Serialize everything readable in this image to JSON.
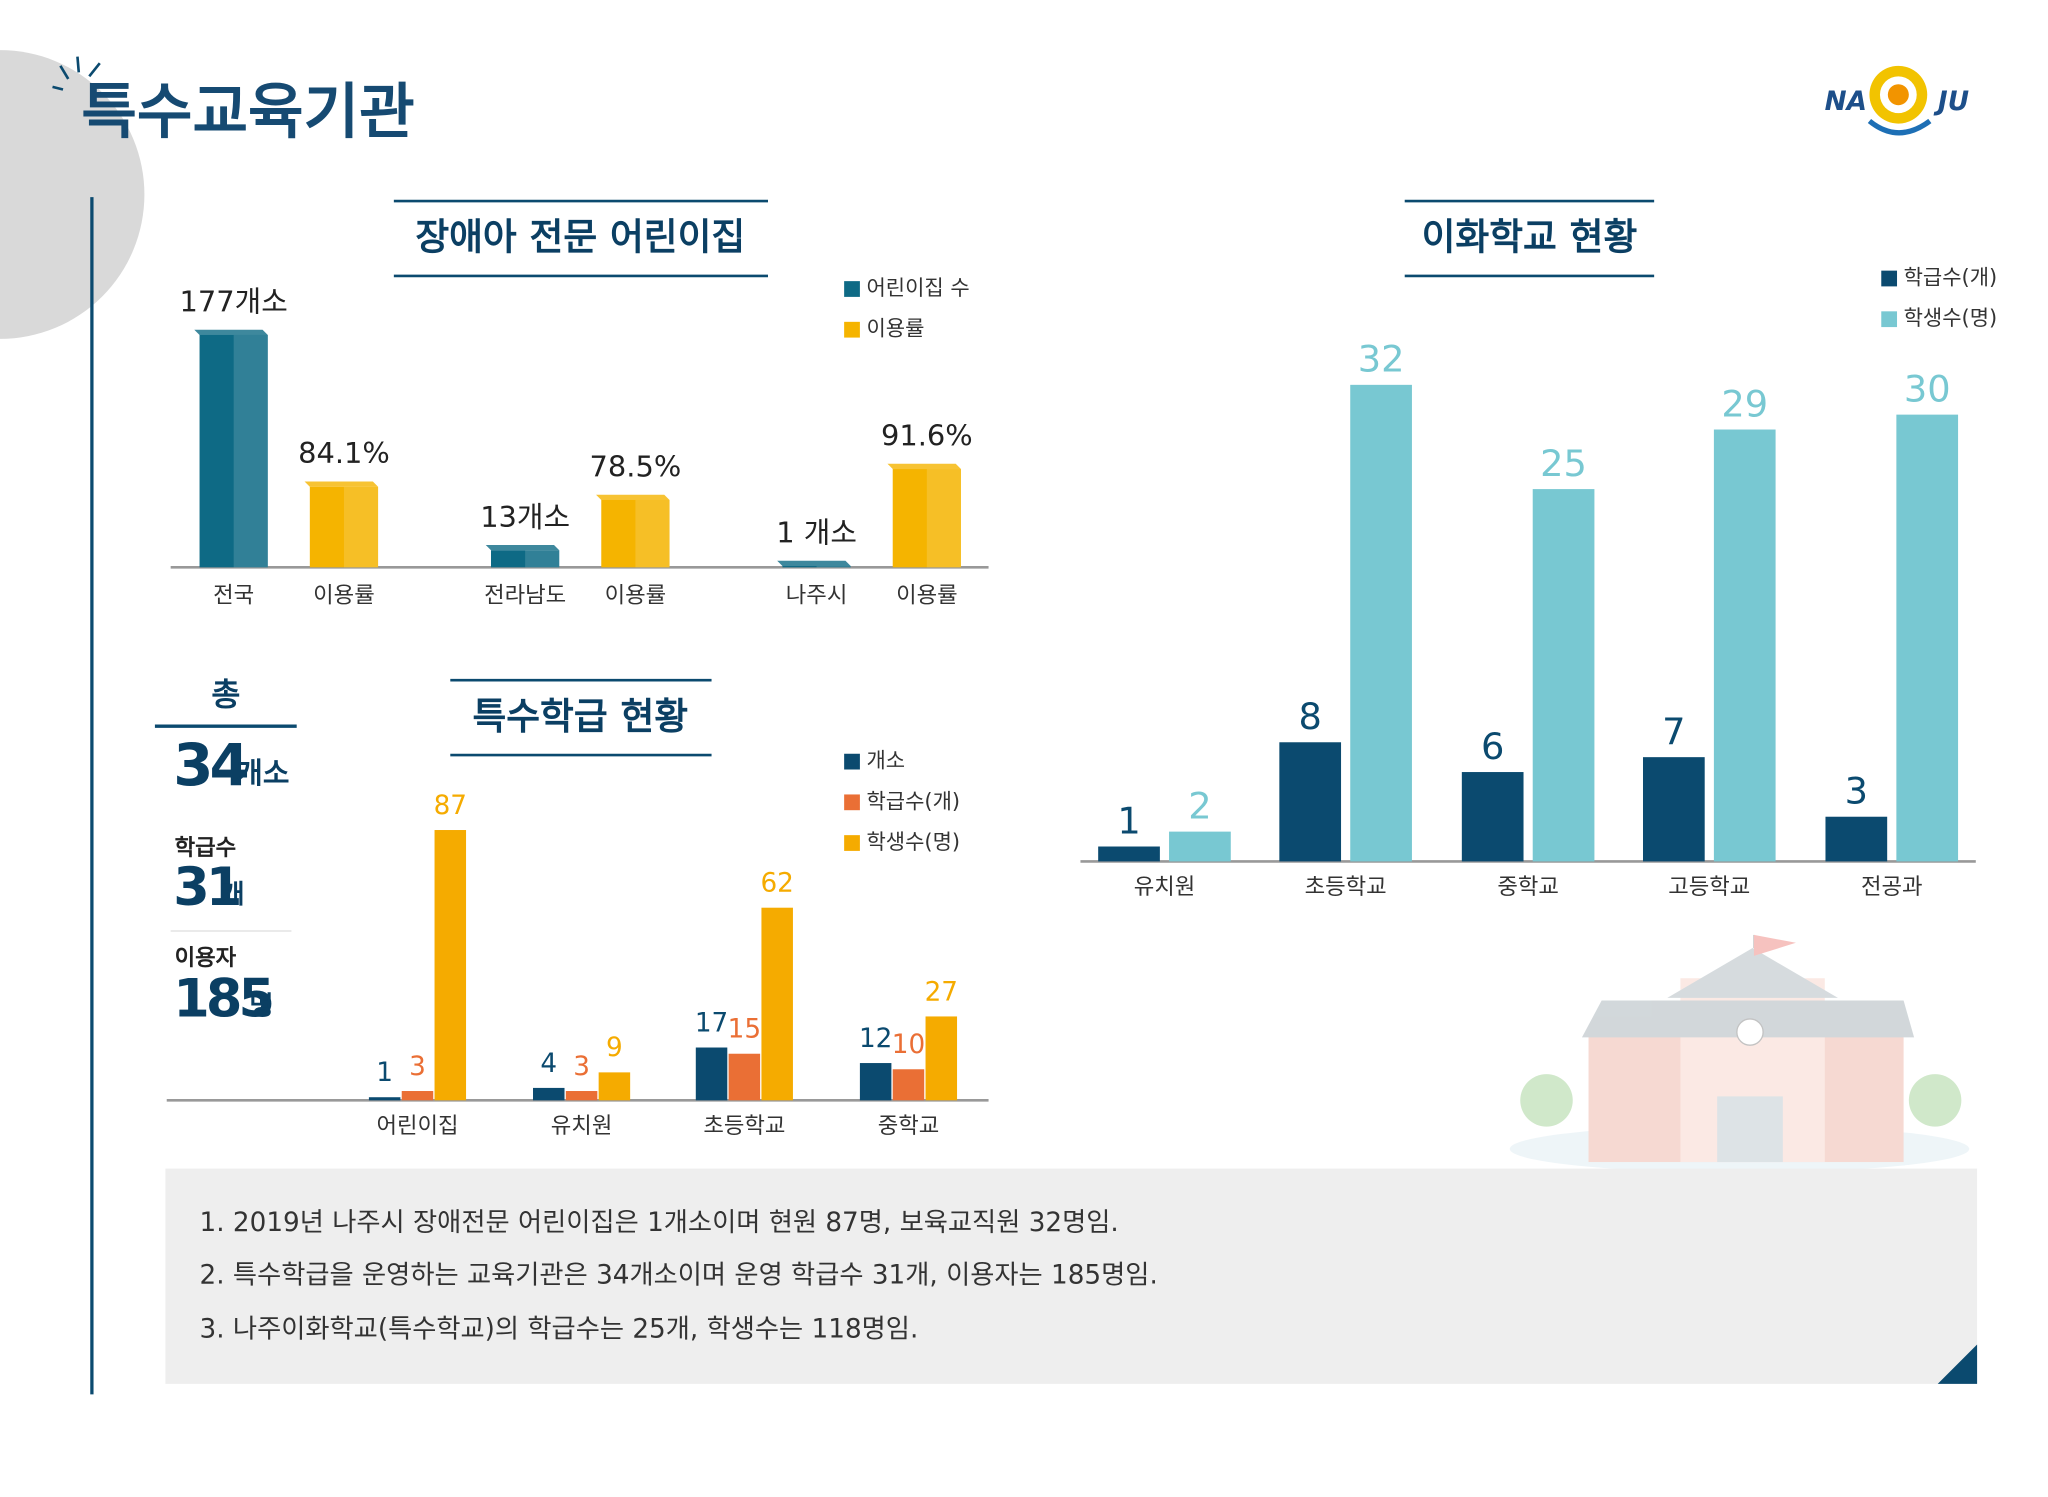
{
  "page_title": "특수교육기관",
  "logo": {
    "left": "NA",
    "right": "JU"
  },
  "summary": {
    "total": {
      "label": "총",
      "value": 34,
      "unit": "개소"
    },
    "classes": {
      "label": "학급수",
      "value": 31,
      "unit": "개"
    },
    "users": {
      "label": "이용자",
      "value": 185,
      "unit": "명"
    }
  },
  "notes": [
    "1. 2019년 나주시 장애전문 어린이집은 1개소이며 현원 87명, 보육교직원 32명임.",
    "2. 특수학급을 운영하는 교육기관은 34개소이며 운영 학급수 31개, 이용자는 185명임.",
    "3. 나주이화학교(특수학교)의 학급수는 25개, 학생수는 118명임."
  ],
  "chart_data": [
    {
      "type": "bar",
      "title": "장애아 전문 어린이집",
      "ylim": [
        0,
        180
      ],
      "y2lim": [
        50,
        150
      ],
      "series": [
        {
          "name": "어린이집 수",
          "color": "#0e6a85",
          "categories": [
            "전국",
            "전라남도",
            "나주시"
          ],
          "values": [
            177,
            13,
            1
          ],
          "value_labels": [
            "177개소",
            "13개소",
            "1 개소"
          ]
        },
        {
          "name": "이용률",
          "color": "#f5b400",
          "axis": "y2",
          "categories": [
            "이용률",
            "이용률",
            "이용률"
          ],
          "values": [
            84.1,
            78.5,
            91.6
          ],
          "value_labels": [
            "84.1%",
            "78.5%",
            "91.6%"
          ]
        }
      ]
    },
    {
      "type": "bar",
      "title": "특수학급 현황",
      "categories": [
        "어린이집",
        "유치원",
        "초등학교",
        "중학교"
      ],
      "ylim": [
        0,
        90
      ],
      "series": [
        {
          "name": "개소",
          "color": "#0b4a6f",
          "values": [
            1,
            4,
            17,
            12
          ]
        },
        {
          "name": "학급수(개)",
          "color": "#ea6f35",
          "values": [
            3,
            3,
            15,
            10
          ]
        },
        {
          "name": "학생수(명)",
          "color": "#f5ab00",
          "values": [
            87,
            9,
            62,
            27
          ]
        }
      ]
    },
    {
      "type": "bar",
      "title": "이화학교 현황",
      "categories": [
        "유치원",
        "초등학교",
        "중학교",
        "고등학교",
        "전공과"
      ],
      "ylim": [
        0,
        32
      ],
      "series": [
        {
          "name": "학급수(개)",
          "color": "#0b4a6f",
          "values": [
            1,
            8,
            6,
            7,
            3
          ]
        },
        {
          "name": "학생수(명)",
          "color": "#78c8d2",
          "values": [
            2,
            32,
            25,
            29,
            30
          ]
        }
      ]
    }
  ]
}
